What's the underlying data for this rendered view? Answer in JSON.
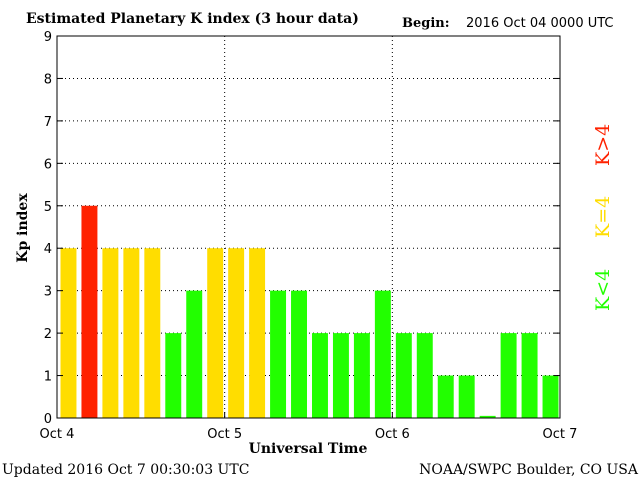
{
  "header": {
    "title": "Estimated Planetary K index (3 hour data)",
    "begin_label": "Begin:",
    "begin_value": "2016 Oct 04 0000 UTC"
  },
  "footer": {
    "updated": "Updated 2016 Oct  7 00:30:03 UTC",
    "source": "NOAA/SWPC Boulder, CO USA"
  },
  "legend": {
    "above": "K>4",
    "equal": "K=4",
    "below": "K<4"
  },
  "colors": {
    "below": "#22ff00",
    "equal": "#ffdd00",
    "above": "#ff2200"
  },
  "chart_data": {
    "type": "bar",
    "xlabel": "Universal Time",
    "ylabel": "Kp index",
    "ylim": [
      0,
      9
    ],
    "yticks": [
      0,
      1,
      2,
      3,
      4,
      5,
      6,
      7,
      8,
      9
    ],
    "x_tick_labels": [
      "Oct 4",
      "Oct 5",
      "Oct 6",
      "Oct 7"
    ],
    "interval_hours": 3,
    "grid": "dotted at integer Kp and each day boundary",
    "values": [
      4,
      5,
      4,
      4,
      4,
      2,
      3,
      4,
      4,
      4,
      3,
      3,
      2,
      2,
      2,
      3,
      2,
      2,
      1,
      1,
      0.05,
      2,
      2,
      1
    ]
  }
}
